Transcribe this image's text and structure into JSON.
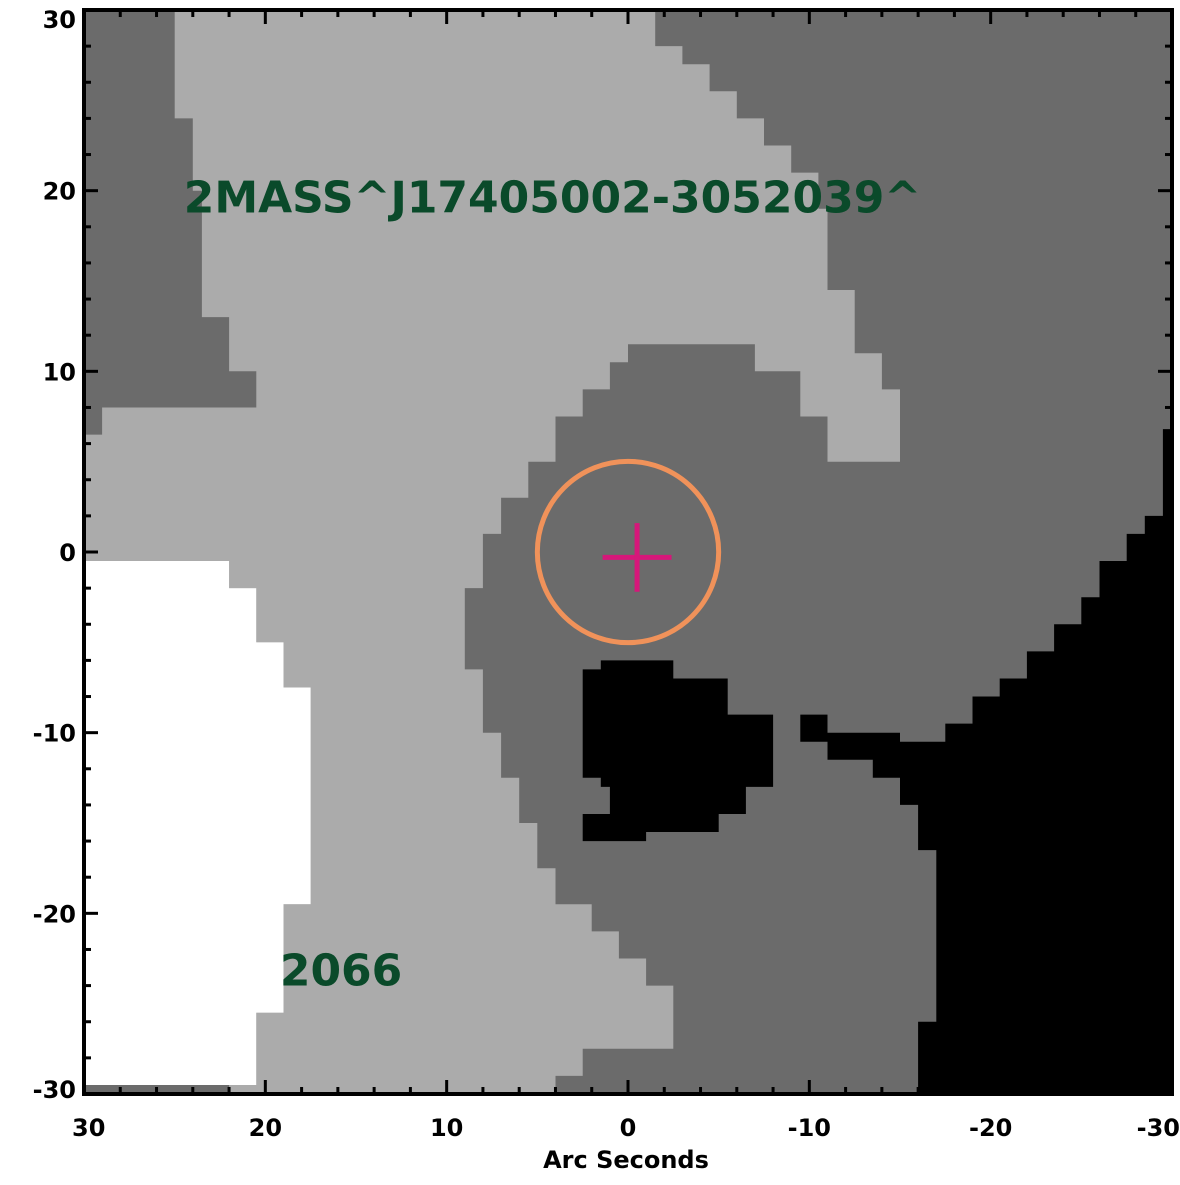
{
  "chart_data": {
    "type": "heatmap",
    "title": "",
    "xlabel": "Arc Seconds",
    "ylabel": "",
    "xlim": [
      30,
      -30
    ],
    "ylim": [
      -30,
      30
    ],
    "x_ticks": [
      30,
      20,
      10,
      0,
      -10,
      -20,
      -30
    ],
    "y_ticks": [
      30,
      20,
      10,
      0,
      -10,
      -20,
      -30
    ],
    "x_tick_labels": [
      "30",
      "20",
      "10",
      "0",
      "-10",
      "-20",
      "-30"
    ],
    "y_tick_labels": [
      "30",
      "20",
      "10",
      "0",
      "-10",
      "-20",
      "-30"
    ],
    "grid": false,
    "colormap": "grayscale, 4 levels",
    "levels": [
      {
        "color": "#ffffff",
        "boundary": [
          [
            30,
            -0.5
          ],
          [
            22,
            -0.5
          ],
          [
            22,
            -2
          ],
          [
            20.5,
            -2
          ],
          [
            20.5,
            -5
          ],
          [
            19,
            -5
          ],
          [
            19,
            -7.5
          ],
          [
            17.5,
            -7.5
          ],
          [
            17.5,
            -19.5
          ],
          [
            19,
            -19.5
          ],
          [
            19,
            -25.5
          ],
          [
            20.5,
            -25.5
          ],
          [
            20.5,
            -29.5
          ],
          [
            30,
            -29.5
          ]
        ]
      },
      {
        "color": "#ababab",
        "boundary": [
          [
            30,
            -0.5
          ],
          [
            22,
            -0.5
          ],
          [
            22,
            -2
          ],
          [
            20.5,
            -2
          ],
          [
            20.5,
            -5
          ],
          [
            19,
            -5
          ],
          [
            19,
            -7.5
          ],
          [
            17.5,
            -7.5
          ],
          [
            17.5,
            -19.5
          ],
          [
            19,
            -19.5
          ],
          [
            19,
            -25.5
          ],
          [
            20.5,
            -25.5
          ],
          [
            20.5,
            -29.5
          ],
          [
            22,
            -29.5
          ],
          [
            22,
            -30
          ],
          [
            4,
            -30
          ],
          [
            4,
            -29
          ],
          [
            2.5,
            -29
          ],
          [
            2.5,
            -27.5
          ],
          [
            -2.5,
            -27.5
          ],
          [
            -2.5,
            -24
          ],
          [
            -1,
            -24
          ],
          [
            -1,
            -22.5
          ],
          [
            0.5,
            -22.5
          ],
          [
            0.5,
            -21
          ],
          [
            2,
            -21
          ],
          [
            2,
            -19.5
          ],
          [
            4,
            -19.5
          ],
          [
            4,
            -17.5
          ],
          [
            5,
            -17.5
          ],
          [
            5,
            -15
          ],
          [
            6,
            -15
          ],
          [
            6,
            -12.5
          ],
          [
            7,
            -12.5
          ],
          [
            7,
            -10
          ],
          [
            8,
            -10
          ],
          [
            8,
            -6.5
          ],
          [
            9,
            -6.5
          ],
          [
            9,
            -2
          ],
          [
            8,
            -2
          ],
          [
            8,
            1
          ],
          [
            7,
            1
          ],
          [
            7,
            3
          ],
          [
            5.5,
            3
          ],
          [
            5.5,
            5
          ],
          [
            4,
            5
          ],
          [
            4,
            7.5
          ],
          [
            2.5,
            7.5
          ],
          [
            2.5,
            9
          ],
          [
            1,
            9
          ],
          [
            1,
            10.5
          ],
          [
            0,
            10.5
          ],
          [
            0,
            11.5
          ],
          [
            -7,
            11.5
          ],
          [
            -7,
            10
          ],
          [
            -9.5,
            10
          ],
          [
            -9.5,
            7.5
          ],
          [
            -11,
            7.5
          ],
          [
            -11,
            5
          ],
          [
            -15,
            5
          ],
          [
            -15,
            9
          ],
          [
            -14,
            9
          ],
          [
            -14,
            11
          ],
          [
            -12.5,
            11
          ],
          [
            -12.5,
            14.5
          ],
          [
            -11,
            14.5
          ],
          [
            -11,
            19
          ],
          [
            -10.5,
            19
          ],
          [
            -10.5,
            21
          ],
          [
            -9,
            21
          ],
          [
            -9,
            22.5
          ],
          [
            -7.5,
            22.5
          ],
          [
            -7.5,
            24
          ],
          [
            -6,
            24
          ],
          [
            -6,
            25.5
          ],
          [
            -4.5,
            25.5
          ],
          [
            -4.5,
            27
          ],
          [
            -3,
            27
          ],
          [
            -3,
            28
          ],
          [
            -1.5,
            28
          ],
          [
            -1.5,
            30
          ],
          [
            25,
            30
          ],
          [
            25,
            24
          ],
          [
            24,
            24
          ],
          [
            24,
            20
          ],
          [
            23.5,
            20
          ],
          [
            23.5,
            13
          ],
          [
            22,
            13
          ],
          [
            22,
            10
          ],
          [
            20.5,
            10
          ],
          [
            20.5,
            8
          ],
          [
            19,
            8
          ],
          [
            19,
            8
          ],
          [
            29,
            8
          ],
          [
            29,
            6.5
          ],
          [
            30,
            6.5
          ]
        ]
      },
      {
        "color": "#6b6b6b",
        "boundary": [
          [
            0,
            11.5
          ],
          [
            -7,
            11.5
          ],
          [
            -7,
            10
          ],
          [
            -9.5,
            10
          ],
          [
            -9.5,
            7.5
          ],
          [
            -11,
            7.5
          ],
          [
            -11,
            5
          ],
          [
            -15,
            5
          ],
          [
            -15,
            9
          ],
          [
            -14,
            9
          ],
          [
            -14,
            11
          ],
          [
            -12.5,
            11
          ],
          [
            -12.5,
            14.5
          ],
          [
            -11,
            14.5
          ],
          [
            -11,
            19
          ],
          [
            -10.5,
            19
          ],
          [
            -10.5,
            21
          ],
          [
            -9,
            21
          ],
          [
            -9,
            22.5
          ],
          [
            -7.5,
            22.5
          ],
          [
            -7.5,
            24
          ],
          [
            -6,
            24
          ],
          [
            -6,
            25.5
          ],
          [
            -4.5,
            25.5
          ],
          [
            -4.5,
            27
          ],
          [
            -3,
            27
          ],
          [
            -3,
            28
          ],
          [
            -1.5,
            28
          ],
          [
            -1.5,
            30
          ],
          [
            -30,
            30
          ],
          [
            -30,
            -30
          ],
          [
            4,
            -30
          ],
          [
            4,
            -29
          ],
          [
            2.5,
            -29
          ],
          [
            2.5,
            -27.5
          ],
          [
            -2.5,
            -27.5
          ],
          [
            -2.5,
            -24
          ],
          [
            -1,
            -24
          ],
          [
            -1,
            -22.5
          ],
          [
            0.5,
            -22.5
          ],
          [
            0.5,
            -21
          ],
          [
            2,
            -21
          ],
          [
            2,
            -19.5
          ],
          [
            4,
            -19.5
          ],
          [
            4,
            -17.5
          ],
          [
            5,
            -17.5
          ],
          [
            5,
            -15
          ],
          [
            6,
            -15
          ],
          [
            6,
            -12.5
          ],
          [
            7,
            -12.5
          ],
          [
            7,
            -10
          ],
          [
            8,
            -10
          ],
          [
            8,
            -6.5
          ],
          [
            9,
            -6.5
          ],
          [
            9,
            -2
          ],
          [
            8,
            -2
          ],
          [
            8,
            1
          ],
          [
            7,
            1
          ],
          [
            7,
            3
          ],
          [
            5.5,
            3
          ],
          [
            5.5,
            5
          ],
          [
            4,
            5
          ],
          [
            4,
            7.5
          ],
          [
            2.5,
            7.5
          ],
          [
            2.5,
            9
          ],
          [
            1,
            9
          ],
          [
            1,
            10.5
          ],
          [
            0,
            10.5
          ]
        ]
      },
      {
        "color": "#000000",
        "boundary": [
          [
            -30,
            6.8
          ],
          [
            -29.5,
            6.8
          ],
          [
            -29.5,
            2
          ],
          [
            -28.5,
            2
          ],
          [
            -28.5,
            1
          ],
          [
            -27.5,
            1
          ],
          [
            -27.5,
            -0.5
          ],
          [
            -26,
            -0.5
          ],
          [
            -26,
            -2.5
          ],
          [
            -25,
            -2.5
          ],
          [
            -25,
            -4
          ],
          [
            -23.5,
            -4
          ],
          [
            -23.5,
            -5.5
          ],
          [
            -22,
            -5.5
          ],
          [
            -22,
            -7
          ],
          [
            -20.5,
            -7
          ],
          [
            -20.5,
            -8
          ],
          [
            -19,
            -8
          ],
          [
            -19,
            -9.5
          ],
          [
            -17.5,
            -9.5
          ],
          [
            -17.5,
            -10.5
          ],
          [
            -15,
            -10.5
          ],
          [
            -15,
            -10
          ],
          [
            -11,
            -10
          ],
          [
            -11,
            -9
          ],
          [
            -9.5,
            -9
          ],
          [
            -9.5,
            -10.5
          ],
          [
            -11,
            -10.5
          ],
          [
            -11,
            -11.5
          ],
          [
            -13.5,
            -11.5
          ],
          [
            -13.5,
            -12.5
          ],
          [
            -15,
            -12.5
          ],
          [
            -15,
            -14
          ],
          [
            -16,
            -14
          ],
          [
            -16,
            -16.5
          ],
          [
            -17,
            -16.5
          ],
          [
            -17,
            -26
          ],
          [
            -16,
            -26
          ],
          [
            -16,
            -30
          ],
          [
            -30,
            -30
          ]
        ]
      },
      {
        "color": "#000000",
        "boundary": [
          [
            1.5,
            -6
          ],
          [
            -2.5,
            -6
          ],
          [
            -2.5,
            -7
          ],
          [
            -5.5,
            -7
          ],
          [
            -5.5,
            -9
          ],
          [
            -8,
            -9
          ],
          [
            -8,
            -13
          ],
          [
            -6.5,
            -13
          ],
          [
            -6.5,
            -14.5
          ],
          [
            -5,
            -14.5
          ],
          [
            -5,
            -15.5
          ],
          [
            -1,
            -15.5
          ],
          [
            -1,
            -16
          ],
          [
            2.5,
            -16
          ],
          [
            2.5,
            -14.5
          ],
          [
            1,
            -14.5
          ],
          [
            1,
            -13
          ],
          [
            1.5,
            -13
          ],
          [
            1.5,
            -12.5
          ],
          [
            2.5,
            -12.5
          ],
          [
            2.5,
            -6.5
          ],
          [
            1.5,
            -6.5
          ]
        ]
      }
    ],
    "annotations": [
      {
        "text": "2MASS^J17405002-3052039^",
        "x": 24.5,
        "y": 18.8,
        "color": "#0a4a2a"
      },
      {
        "text": "2066",
        "x": 19.2,
        "y": -24.0,
        "color": "#0a4a2a"
      }
    ],
    "markers": [
      {
        "kind": "circle",
        "center": [
          0,
          0
        ],
        "radius": 5,
        "color": "#f0925a"
      },
      {
        "kind": "cross",
        "center": [
          -0.5,
          -0.3
        ],
        "half_width": 1.9,
        "half_height": 1.9,
        "color": "#d6177a"
      }
    ]
  }
}
